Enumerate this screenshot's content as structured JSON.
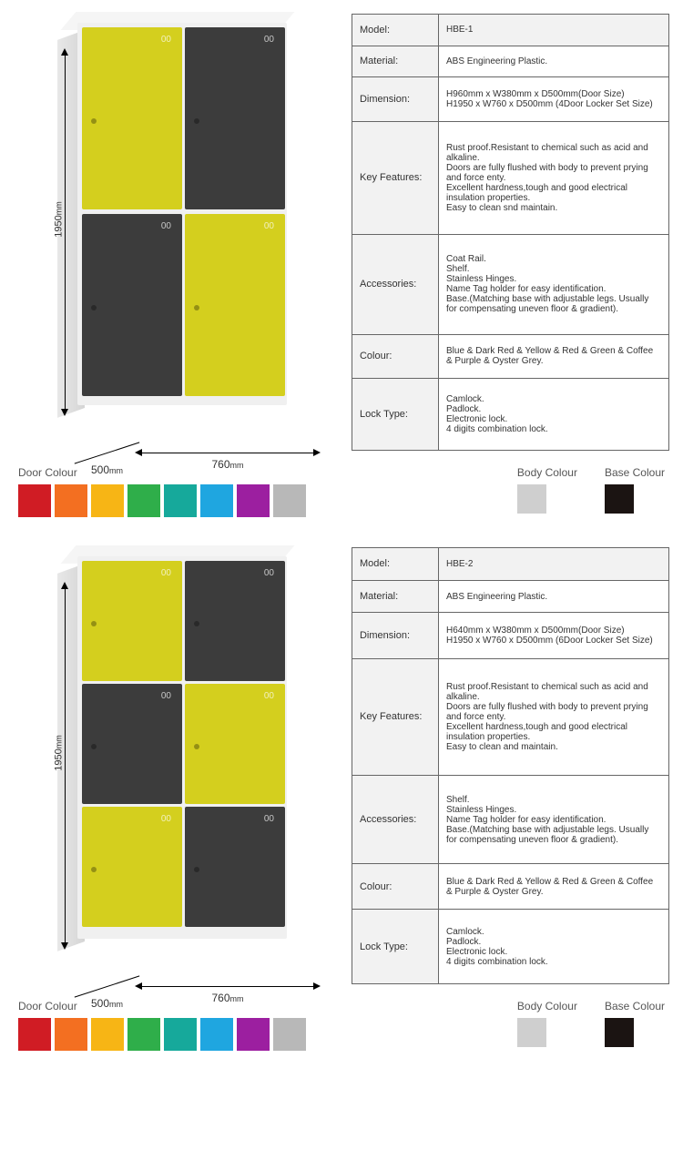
{
  "products": [
    {
      "dims": {
        "height": "1950",
        "width": "760",
        "depth": "500",
        "unit": "mm"
      },
      "doors": {
        "layout": "doors-4",
        "cells": [
          {
            "cls": "d1",
            "color": "#d4cf1e"
          },
          {
            "cls": "d2",
            "color": "#3c3c3c"
          },
          {
            "cls": "d3",
            "color": "#3c3c3c"
          },
          {
            "cls": "d4",
            "color": "#d4cf1e"
          }
        ]
      },
      "spec": [
        {
          "label": "Model:",
          "value": "HBE-1"
        },
        {
          "label": "Material:",
          "value": "ABS Engineering Plastic."
        },
        {
          "label": "Dimension:",
          "value": "H960mm x W380mm x D500mm(Door Size)\nH1950 x W760 x D500mm (4Door Locker Set Size)"
        },
        {
          "label": "Key Features:",
          "value": "Rust proof.Resistant to chemical such as acid and alkaline.\nDoors are fully flushed with body to prevent prying and force enty.\nExcellent hardness,tough and good electrical insulation properties.\nEasy to clean snd maintain."
        },
        {
          "label": "Accessories:",
          "value": "Coat Rail.\nShelf.\nStainless Hinges.\nName Tag holder for easy identification.\nBase.(Matching base with adjustable legs. Usually for compensating uneven floor & gradient)."
        },
        {
          "label": "Colour:",
          "value": "Blue & Dark Red & Yellow & Red & Green & Coffee & Purple & Oyster Grey."
        },
        {
          "label": "Lock Type:",
          "value": "Camlock.\nPadlock.\nElectronic lock.\n4 digits combination lock."
        }
      ]
    },
    {
      "dims": {
        "height": "1950",
        "width": "760",
        "depth": "500",
        "unit": "mm"
      },
      "doors": {
        "layout": "doors-6",
        "cells": [
          {
            "cls": "d1",
            "color": "#d4cf1e"
          },
          {
            "cls": "d2",
            "color": "#3c3c3c"
          },
          {
            "cls": "d3",
            "color": "#3c3c3c"
          },
          {
            "cls": "d4",
            "color": "#d4cf1e"
          },
          {
            "cls": "d5",
            "color": "#d4cf1e"
          },
          {
            "cls": "d6",
            "color": "#3c3c3c"
          }
        ]
      },
      "spec": [
        {
          "label": "Model:",
          "value": "HBE-2"
        },
        {
          "label": "Material:",
          "value": "ABS Engineering Plastic."
        },
        {
          "label": "Dimension:",
          "value": "H640mm x W380mm x D500mm(Door Size)\nH1950 x W760 x D500mm (6Door Locker Set Size)"
        },
        {
          "label": "Key Features:",
          "value": "Rust proof.Resistant to chemical such as acid and alkaline.\nDoors are fully flushed with body to prevent prying and force enty.\nExcellent hardness,tough and good electrical insulation properties.\nEasy to clean and maintain."
        },
        {
          "label": "Accessories:",
          "value": "Shelf.\nStainless Hinges.\nName Tag holder for easy identification.\nBase.(Matching base with adjustable legs. Usually for compensating uneven floor & gradient)."
        },
        {
          "label": "Colour:",
          "value": "Blue & Dark Red & Yellow & Red & Green & Coffee & Purple & Oyster Grey."
        },
        {
          "label": "Lock Type:",
          "value": "Camlock.\nPadlock.\nElectronic lock.\n4 digits combination lock."
        }
      ]
    }
  ],
  "colorLabels": {
    "door": "Door Colour",
    "body": "Body Colour",
    "base": "Base Colour"
  },
  "doorColours": [
    "#d01c24",
    "#f36f21",
    "#f7b515",
    "#2fae4a",
    "#16a99b",
    "#1fa6e0",
    "#9c1fa0",
    "#b8b8b8"
  ],
  "bodyColour": "#cfcfcf",
  "baseColour": "#1b1412"
}
